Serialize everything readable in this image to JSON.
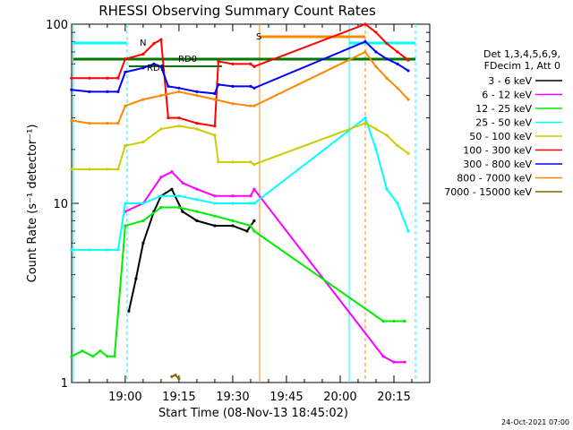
{
  "chart_data": {
    "type": "line",
    "title": "RHESSI Observing Summary Count Rates",
    "xlabel": "Start Time (08-Nov-13 18:45:02)",
    "ylabel": "Count Rate (s⁻¹ detector⁻¹)",
    "yscale": "log",
    "ylim": [
      1,
      100
    ],
    "xlim": [
      "18:45:02",
      "20:25:00"
    ],
    "x_ticks": [
      "19:00",
      "19:15",
      "19:30",
      "19:45",
      "20:00",
      "20:15"
    ],
    "y_ticks": [
      "1",
      "10",
      "100"
    ],
    "legend": {
      "placement": "right",
      "header": [
        "Det 1,3,4,5,6,9,",
        "FDecim 1, Att 0"
      ],
      "entries": [
        {
          "label": "3 - 6 keV",
          "color": "#000000"
        },
        {
          "label": "6 - 12 keV",
          "color": "#ff00ff"
        },
        {
          "label": "12 - 25 keV",
          "color": "#00ee00"
        },
        {
          "label": "25 - 50 keV",
          "color": "#00ffff"
        },
        {
          "label": "50 - 100 keV",
          "color": "#cccc00"
        },
        {
          "label": "100 - 300 keV",
          "color": "#ff0000"
        },
        {
          "label": "300 - 800 keV",
          "color": "#0000ff"
        },
        {
          "label": "800 - 7000 keV",
          "color": "#ff8800"
        },
        {
          "label": "7000 - 15000 keV",
          "color": "#886600"
        }
      ]
    },
    "annotations": [
      {
        "label": "N",
        "color": "#00ffff"
      },
      {
        "label": "S",
        "color": "#ff8800"
      },
      {
        "label": "RD0",
        "color": "#007700"
      },
      {
        "label": "RD1",
        "color": "#007700"
      }
    ],
    "series": [
      {
        "name": "3 - 6 keV",
        "color": "#000000",
        "points": [
          [
            "19:01",
            2.5
          ],
          [
            "19:03",
            3.8
          ],
          [
            "19:05",
            6
          ],
          [
            "19:08",
            9
          ],
          [
            "19:10",
            11
          ],
          [
            "19:13",
            12
          ],
          [
            "19:16",
            9
          ],
          [
            "19:20",
            8
          ],
          [
            "19:25",
            7.5
          ],
          [
            "19:30",
            7.5
          ],
          [
            "19:34",
            7
          ],
          [
            "19:36",
            8
          ]
        ]
      },
      {
        "name": "6 - 12 keV",
        "color": "#ff00ff",
        "points": [
          [
            "19:00",
            9
          ],
          [
            "19:05",
            10
          ],
          [
            "19:10",
            14
          ],
          [
            "19:13",
            15
          ],
          [
            "19:16",
            13
          ],
          [
            "19:20",
            12
          ],
          [
            "19:25",
            11
          ],
          [
            "19:30",
            11
          ],
          [
            "19:35",
            11
          ],
          [
            "19:36",
            12
          ],
          [
            "20:12",
            1.4
          ],
          [
            "20:15",
            1.3
          ],
          [
            "20:18",
            1.3
          ]
        ]
      },
      {
        "name": "12 - 25 keV",
        "color": "#00ee00",
        "points": [
          [
            "18:45",
            1.4
          ],
          [
            "18:48",
            1.5
          ],
          [
            "18:51",
            1.4
          ],
          [
            "18:53",
            1.5
          ],
          [
            "18:55",
            1.4
          ],
          [
            "18:57",
            1.4
          ],
          [
            "19:00",
            7.5
          ],
          [
            "19:05",
            8
          ],
          [
            "19:10",
            9.5
          ],
          [
            "19:15",
            9.5
          ],
          [
            "19:20",
            9
          ],
          [
            "19:25",
            8.5
          ],
          [
            "19:30",
            8
          ],
          [
            "19:35",
            7.5
          ],
          [
            "19:36",
            7
          ],
          [
            "20:12",
            2.2
          ],
          [
            "20:15",
            2.2
          ],
          [
            "20:18",
            2.2
          ]
        ]
      },
      {
        "name": "25 - 50 keV",
        "color": "#00ffff",
        "points": [
          [
            "18:45",
            5.5
          ],
          [
            "18:50",
            5.5
          ],
          [
            "18:55",
            5.5
          ],
          [
            "18:58",
            5.5
          ],
          [
            "19:00",
            10
          ],
          [
            "19:05",
            10
          ],
          [
            "19:10",
            11
          ],
          [
            "19:15",
            11
          ],
          [
            "19:20",
            10.5
          ],
          [
            "19:25",
            10
          ],
          [
            "19:30",
            10
          ],
          [
            "19:35",
            10
          ],
          [
            "19:36",
            10
          ],
          [
            "20:07",
            30
          ],
          [
            "20:10",
            20
          ],
          [
            "20:13",
            12
          ],
          [
            "20:16",
            10
          ],
          [
            "20:19",
            7
          ]
        ]
      },
      {
        "name": "50 - 100 keV",
        "color": "#cccc00",
        "points": [
          [
            "18:45",
            15.5
          ],
          [
            "18:50",
            15.5
          ],
          [
            "18:55",
            15.5
          ],
          [
            "18:58",
            15.5
          ],
          [
            "19:00",
            21
          ],
          [
            "19:05",
            22
          ],
          [
            "19:10",
            26
          ],
          [
            "19:15",
            27
          ],
          [
            "19:20",
            26
          ],
          [
            "19:25",
            24
          ],
          [
            "19:26",
            17
          ],
          [
            "19:30",
            17
          ],
          [
            "19:35",
            17
          ],
          [
            "19:36",
            16.5
          ],
          [
            "20:07",
            28
          ],
          [
            "20:10",
            26
          ],
          [
            "20:13",
            24
          ],
          [
            "20:16",
            21
          ],
          [
            "20:19",
            19
          ]
        ]
      },
      {
        "name": "100 - 300 keV",
        "color": "#ff0000",
        "points": [
          [
            "18:45",
            50
          ],
          [
            "18:50",
            50
          ],
          [
            "18:55",
            50
          ],
          [
            "18:58",
            50
          ],
          [
            "19:00",
            64
          ],
          [
            "19:05",
            68
          ],
          [
            "19:08",
            78
          ],
          [
            "19:10",
            82
          ],
          [
            "19:12",
            30
          ],
          [
            "19:15",
            30
          ],
          [
            "19:20",
            28
          ],
          [
            "19:25",
            27
          ],
          [
            "19:26",
            62
          ],
          [
            "19:30",
            60
          ],
          [
            "19:35",
            60
          ],
          [
            "19:36",
            58
          ],
          [
            "20:07",
            100
          ],
          [
            "20:10",
            90
          ],
          [
            "20:13",
            78
          ],
          [
            "20:16",
            70
          ],
          [
            "20:19",
            63
          ]
        ]
      },
      {
        "name": "300 - 800 keV",
        "color": "#0000ff",
        "points": [
          [
            "18:45",
            43
          ],
          [
            "18:50",
            42
          ],
          [
            "18:55",
            42
          ],
          [
            "18:58",
            42
          ],
          [
            "19:00",
            54
          ],
          [
            "19:05",
            57
          ],
          [
            "19:08",
            60
          ],
          [
            "19:10",
            58
          ],
          [
            "19:12",
            45
          ],
          [
            "19:15",
            44
          ],
          [
            "19:20",
            42
          ],
          [
            "19:25",
            41
          ],
          [
            "19:26",
            46
          ],
          [
            "19:30",
            45
          ],
          [
            "19:35",
            45
          ],
          [
            "19:36",
            44
          ],
          [
            "20:07",
            80
          ],
          [
            "20:10",
            70
          ],
          [
            "20:13",
            64
          ],
          [
            "20:16",
            60
          ],
          [
            "20:19",
            55
          ]
        ]
      },
      {
        "name": "800 - 7000 keV",
        "color": "#ff8800",
        "points": [
          [
            "18:45",
            29
          ],
          [
            "18:50",
            28
          ],
          [
            "18:55",
            28
          ],
          [
            "18:58",
            28
          ],
          [
            "19:00",
            35
          ],
          [
            "19:05",
            38
          ],
          [
            "19:10",
            40
          ],
          [
            "19:15",
            42
          ],
          [
            "19:20",
            40
          ],
          [
            "19:25",
            38
          ],
          [
            "19:30",
            36
          ],
          [
            "19:35",
            35
          ],
          [
            "19:36",
            35
          ],
          [
            "20:07",
            70
          ],
          [
            "20:10",
            58
          ],
          [
            "20:13",
            50
          ],
          [
            "20:16",
            44
          ],
          [
            "20:19",
            38
          ]
        ]
      },
      {
        "name": "7000 - 15000 keV",
        "color": "#886600",
        "points": [
          [
            "19:13",
            1.08
          ],
          [
            "19:14",
            1.1
          ],
          [
            "19:15",
            1.05
          ]
        ]
      }
    ]
  },
  "footer": {
    "timestamp": "24-Oct-2021 07:00"
  }
}
